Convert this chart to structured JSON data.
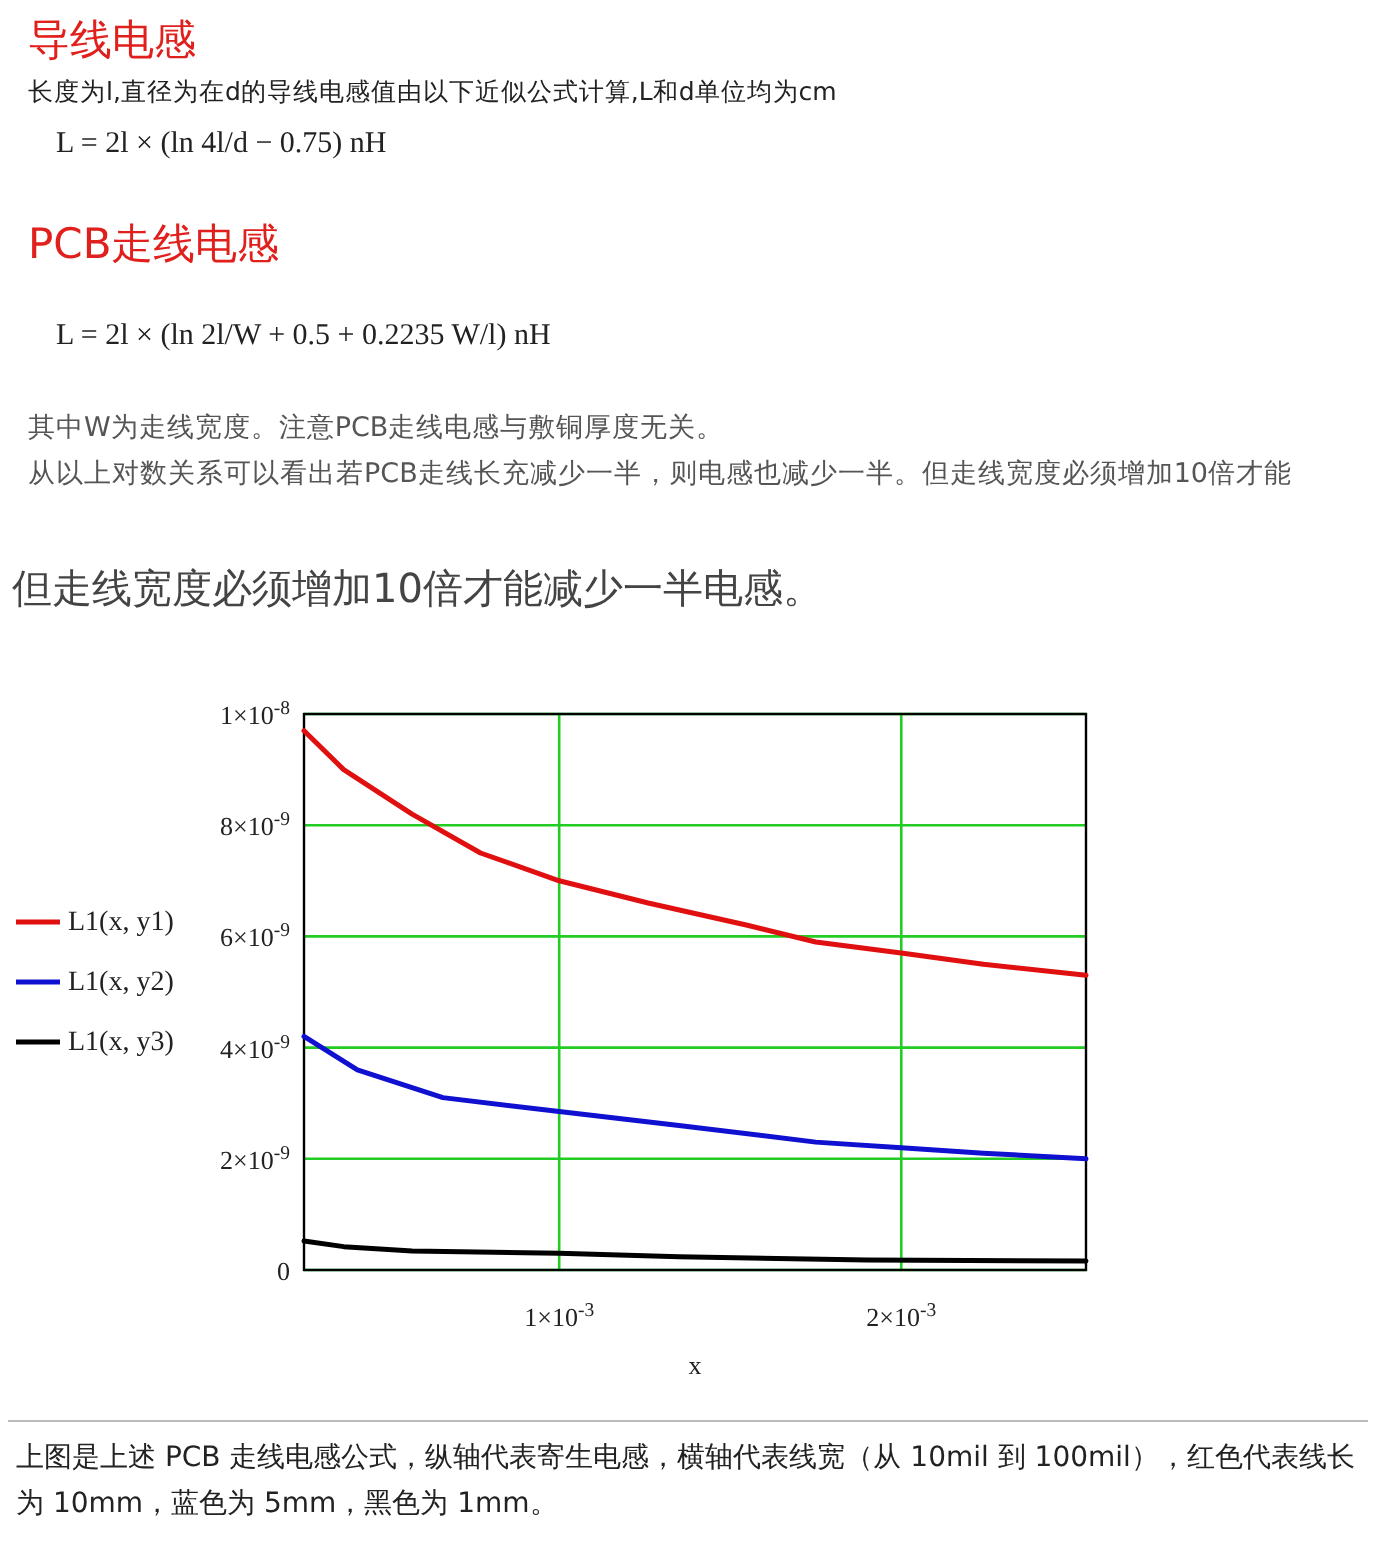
{
  "chart_data": {
    "type": "line",
    "xlabel": "x",
    "legend": "left",
    "grid": true,
    "line_style": "solid",
    "marker": "none",
    "xlim": [
      0.000254,
      0.00254
    ],
    "ylim": [
      0,
      1e-08
    ],
    "xticks": [
      {
        "value": 0.001,
        "label": "1×10$^{-3}$"
      },
      {
        "value": 0.002,
        "label": "2×10$^{-3}$"
      }
    ],
    "yticks": [
      0,
      {
        "value": 2e-09,
        "label": "2×10$^{-9}$"
      },
      {
        "value": 4e-09,
        "label": "4×10$^{-9}$"
      },
      {
        "value": 6e-09,
        "label": "6×10$^{-9}$"
      },
      {
        "value": 8e-09,
        "label": "8×10$^{-9}$"
      },
      {
        "value": 1e-08,
        "label": "1×10$^{-8}$"
      }
    ],
    "series": [
      {
        "name": "L1(x, y1)",
        "color": "#e01010",
        "x": [
          0.000254,
          0.00037,
          0.00057,
          0.00077,
          0.001,
          0.00126,
          0.00155,
          0.00175,
          0.002,
          0.00224,
          0.00254
        ],
        "values": [
          9.7e-09,
          9e-09,
          8.2e-09,
          7.5e-09,
          7e-09,
          6.6e-09,
          6.2e-09,
          5.9e-09,
          5.7e-09,
          5.5e-09,
          5.3e-09
        ]
      },
      {
        "name": "L1(x, y2)",
        "color": "#1010d0",
        "x": [
          0.000254,
          0.00041,
          0.00066,
          0.001,
          0.00135,
          0.00175,
          0.002,
          0.00224,
          0.00254
        ],
        "values": [
          4.2e-09,
          3.6e-09,
          3.1e-09,
          2.85e-09,
          2.6e-09,
          2.3e-09,
          2.2e-09,
          2.1e-09,
          2e-09
        ]
      },
      {
        "name": "L1(x, y3)",
        "color": "#000000",
        "x": [
          0.000254,
          0.00037,
          0.00057,
          0.001,
          0.00135,
          0.0019,
          0.00254
        ],
        "values": [
          5.2e-10,
          4.2e-10,
          3.4e-10,
          3e-10,
          2.4e-10,
          1.8e-10,
          1.6e-10
        ]
      }
    ],
    "annotations": [
      "导线电感",
      "长度为l,直径为在d的导线电感值由以下近似公式计算,L和d单位均为cm",
      "L = 2l × (ln 4l/d − 0.75) nH",
      "PCB走线电感",
      "L = 2l × (ln 2l/W + 0.5 + 0.2235 W/l) nH",
      "其中W为走线宽度。注意PCB走线电感与敷铜厚度无关。",
      "从以上对数关系可以看出若PCB走线长充减少一半，则电感也减少一半。但走线宽度必须增加10倍才能",
      "但走线宽度必须增加10倍才能减少一半电感。",
      "上图是上述 PCB 走线电感公式，纵轴代表寄生电感，横轴代表线宽（从 10mil 到 100mil），红色代表线长为 10mm，蓝色为 5mm，黑色为 1mm。"
    ]
  }
}
